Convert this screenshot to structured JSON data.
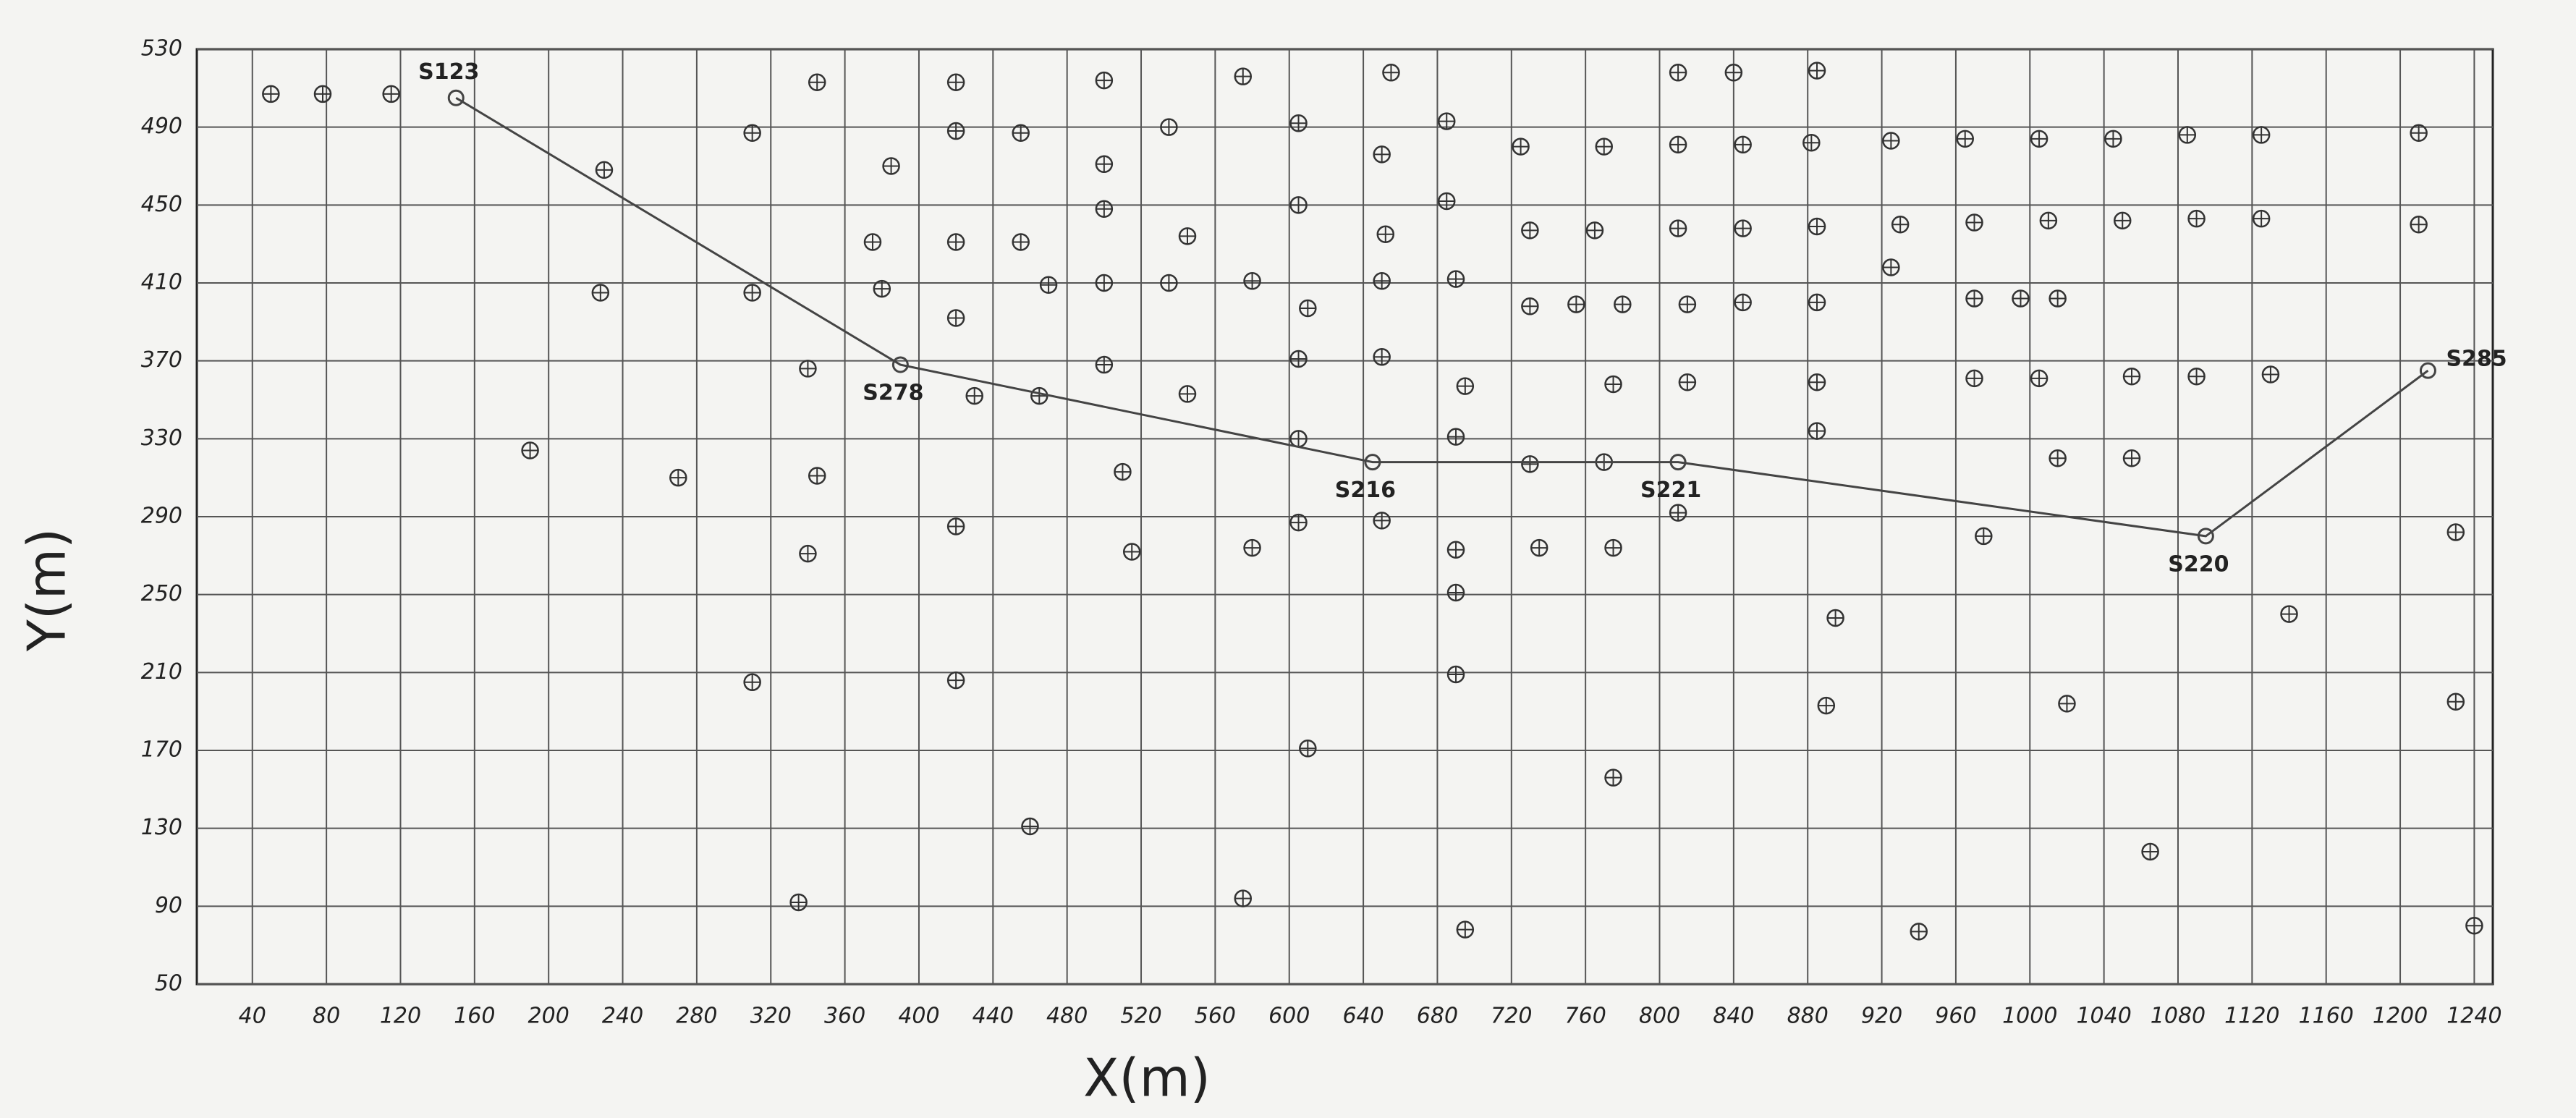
{
  "chart_data": {
    "type": "scatter",
    "x_label": "X(m)",
    "y_label": "Y(m)",
    "xlim": [
      10,
      1250
    ],
    "ylim": [
      50,
      530
    ],
    "xticks": [
      40,
      80,
      120,
      160,
      200,
      240,
      280,
      320,
      360,
      400,
      440,
      480,
      520,
      560,
      600,
      640,
      680,
      720,
      760,
      800,
      840,
      880,
      920,
      960,
      1000,
      1040,
      1080,
      1120,
      1160,
      1200,
      1240
    ],
    "yticks": [
      50,
      90,
      130,
      170,
      210,
      250,
      290,
      330,
      370,
      410,
      450,
      490,
      530
    ],
    "grid": true,
    "points": {
      "color": "#333333",
      "x": [
        50,
        78,
        115,
        345,
        420,
        500,
        575,
        655,
        810,
        840,
        885,
        420,
        455,
        535,
        605,
        685,
        310,
        1210,
        725,
        770,
        810,
        845,
        882,
        925,
        965,
        1005,
        1045,
        1085,
        1125,
        230,
        385,
        500,
        650,
        500,
        605,
        685,
        545,
        652,
        730,
        765,
        810,
        845,
        885,
        930,
        970,
        1010,
        1050,
        1090,
        1125,
        1210,
        375,
        420,
        455,
        228,
        310,
        380,
        470,
        500,
        535,
        580,
        650,
        690,
        925,
        420,
        610,
        730,
        755,
        780,
        815,
        845,
        885,
        970,
        995,
        1015,
        340,
        500,
        605,
        650,
        430,
        465,
        545,
        695,
        775,
        815,
        885,
        970,
        1005,
        1055,
        1090,
        1130,
        605,
        690,
        190,
        1015,
        1055,
        270,
        345,
        510,
        730,
        770,
        885,
        420,
        605,
        650,
        810,
        340,
        515,
        580,
        690,
        735,
        775,
        975,
        1230,
        690,
        895,
        1140,
        310,
        420,
        690,
        890,
        1020,
        1230,
        610,
        775,
        460,
        1065,
        335,
        575,
        695,
        940,
        1240
      ],
      "values": [
        507,
        507,
        507,
        513,
        513,
        514,
        516,
        518,
        518,
        518,
        519,
        488,
        487,
        490,
        492,
        493,
        487,
        487,
        480,
        480,
        481,
        481,
        482,
        483,
        484,
        484,
        484,
        486,
        486,
        468,
        470,
        471,
        476,
        448,
        450,
        452,
        434,
        435,
        437,
        437,
        438,
        438,
        439,
        440,
        441,
        442,
        442,
        443,
        443,
        440,
        431,
        431,
        431,
        405,
        405,
        407,
        409,
        410,
        410,
        411,
        411,
        412,
        418,
        392,
        397,
        398,
        399,
        399,
        399,
        400,
        400,
        402,
        402,
        402,
        366,
        368,
        371,
        372,
        352,
        352,
        353,
        357,
        358,
        359,
        359,
        361,
        361,
        362,
        362,
        363,
        330,
        331,
        324,
        320,
        320,
        310,
        311,
        313,
        317,
        318,
        334,
        285,
        287,
        288,
        292,
        271,
        272,
        274,
        273,
        274,
        274,
        280,
        282,
        251,
        238,
        240,
        205,
        206,
        209,
        193,
        194,
        195,
        171,
        156,
        131,
        118,
        92,
        94,
        78,
        77,
        80
      ]
    },
    "profile": {
      "color": "#444444",
      "x": [
        150,
        390,
        645,
        810,
        1095,
        1215
      ],
      "values": [
        505,
        368,
        318,
        318,
        280,
        365
      ],
      "labels": [
        "S123",
        "S278",
        "S216",
        "S221",
        "S220",
        "S285"
      ]
    }
  }
}
